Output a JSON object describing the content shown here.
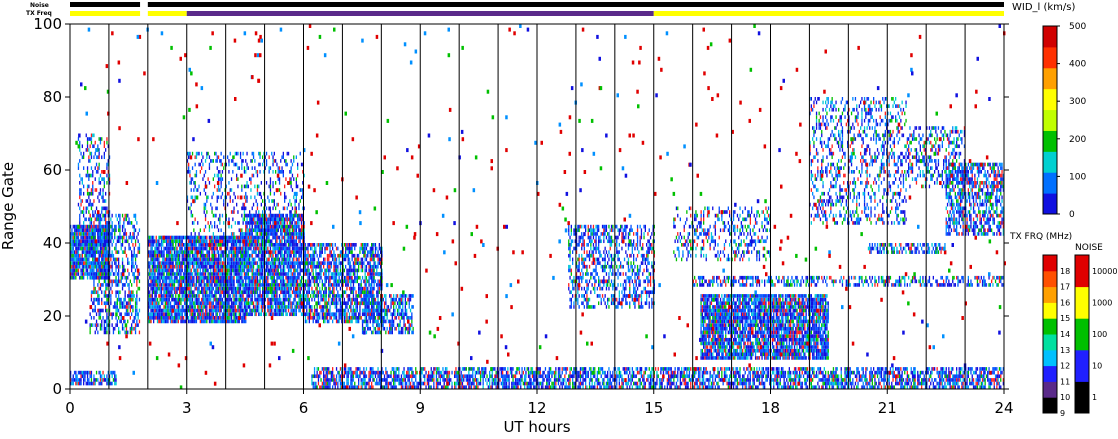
{
  "chart_data": {
    "type": "heatmap",
    "title": "",
    "xlabel": "UT hours",
    "ylabel": "Range Gate",
    "xlim": [
      0,
      24
    ],
    "ylim": [
      0,
      100
    ],
    "x_ticks": [
      0,
      3,
      6,
      9,
      12,
      15,
      18,
      21,
      24
    ],
    "y_ticks": [
      0,
      20,
      40,
      60,
      80,
      100
    ],
    "vertical_lines_ut": [
      1.0,
      2.0,
      3.0,
      4.0,
      5.0,
      6.0,
      7.0,
      8.0,
      9.0,
      10.0,
      11.0,
      12.0,
      13.0,
      14.0,
      15.0,
      16.0,
      17.0,
      18.0,
      19.0,
      20.0,
      21.0,
      22.0,
      23.0
    ],
    "status_bars": {
      "noise_label": "Noise",
      "txfreq_label": "TX Freq",
      "noise_segments": [
        {
          "start": 0.0,
          "end": 1.8,
          "color": "#000000"
        },
        {
          "start": 2.0,
          "end": 24.0,
          "color": "#000000"
        }
      ],
      "txfreq_segments": [
        {
          "start": 0.0,
          "end": 1.8,
          "color": "#ffff00"
        },
        {
          "start": 2.0,
          "end": 3.0,
          "color": "#ffff00"
        },
        {
          "start": 3.0,
          "end": 15.0,
          "color": "#5a2a8a"
        },
        {
          "start": 15.0,
          "end": 24.0,
          "color": "#ffff00"
        }
      ]
    },
    "width_colorbar": {
      "label": "WID_l (km/s)",
      "ticks": [
        0,
        100,
        200,
        300,
        400,
        500
      ],
      "colors": [
        "#1010e0",
        "#0070ff",
        "#00d0d0",
        "#00c000",
        "#c0ff00",
        "#ffff00",
        "#ffa000",
        "#ff3000",
        "#d00000"
      ]
    },
    "txfreq_colorbar": {
      "label": "TX FRQ (MHz)",
      "ticks": [
        "9",
        "10",
        "11",
        "12",
        "13",
        "14",
        "15",
        "16",
        "17",
        "18"
      ],
      "colors": [
        "#000000",
        "#5a2a8a",
        "#2020ff",
        "#00c0ff",
        "#00e0a0",
        "#00c000",
        "#ffff00",
        "#ffa000",
        "#ff5000",
        "#e00000"
      ]
    },
    "noise_colorbar": {
      "label": "NOISE",
      "ticks": [
        "1",
        "10",
        "100",
        "1000",
        "10000"
      ],
      "colors": [
        "#000000",
        "#2020ff",
        "#00c000",
        "#ffff00",
        "#e00000"
      ]
    },
    "echo_regions": [
      {
        "t0": 0.0,
        "t1": 1.0,
        "g0": 30,
        "g1": 45,
        "density": 0.9
      },
      {
        "t0": 0.5,
        "t1": 1.8,
        "g0": 15,
        "g1": 48,
        "density": 0.5
      },
      {
        "t0": 0.2,
        "t1": 1.0,
        "g0": 45,
        "g1": 70,
        "density": 0.3
      },
      {
        "t0": 2.0,
        "t1": 4.5,
        "g0": 18,
        "g1": 42,
        "density": 0.9
      },
      {
        "t0": 3.0,
        "t1": 6.0,
        "g0": 40,
        "g1": 65,
        "density": 0.25
      },
      {
        "t0": 4.5,
        "t1": 6.0,
        "g0": 20,
        "g1": 48,
        "density": 0.85
      },
      {
        "t0": 6.0,
        "t1": 8.0,
        "g0": 18,
        "g1": 40,
        "density": 0.7
      },
      {
        "t0": 7.5,
        "t1": 8.8,
        "g0": 15,
        "g1": 26,
        "density": 0.6
      },
      {
        "t0": 0.0,
        "t1": 1.2,
        "g0": 1,
        "g1": 5,
        "density": 0.7
      },
      {
        "t0": 6.2,
        "t1": 24.0,
        "g0": 0,
        "g1": 6,
        "density": 0.65
      },
      {
        "t0": 12.8,
        "t1": 15.0,
        "g0": 22,
        "g1": 45,
        "density": 0.45
      },
      {
        "t0": 15.5,
        "t1": 18.0,
        "g0": 35,
        "g1": 50,
        "density": 0.3
      },
      {
        "t0": 16.2,
        "t1": 19.5,
        "g0": 8,
        "g1": 26,
        "density": 0.85
      },
      {
        "t0": 16.0,
        "t1": 24.0,
        "g0": 28,
        "g1": 31,
        "density": 0.5
      },
      {
        "t0": 19.0,
        "t1": 21.5,
        "g0": 45,
        "g1": 80,
        "density": 0.3
      },
      {
        "t0": 20.5,
        "t1": 22.5,
        "g0": 37,
        "g1": 40,
        "density": 0.6
      },
      {
        "t0": 22.5,
        "t1": 24.0,
        "g0": 42,
        "g1": 62,
        "density": 0.6
      },
      {
        "t0": 21.5,
        "t1": 23.0,
        "g0": 55,
        "g1": 72,
        "density": 0.35
      }
    ]
  }
}
